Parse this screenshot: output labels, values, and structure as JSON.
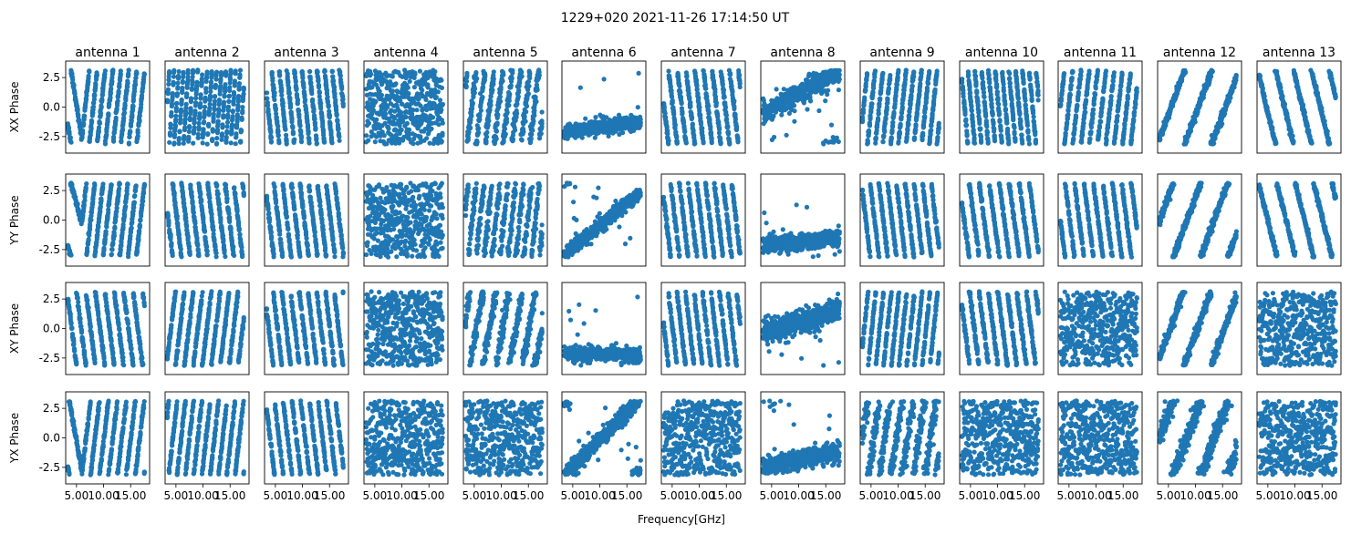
{
  "suptitle": "1229+020 2021-11-26 17:14:50 UT",
  "xlabel": "Frequency[GHz]",
  "row_labels": [
    "XX Phase",
    "YY Phase",
    "XY Phase",
    "YX Phase"
  ],
  "column_titles": [
    "antenna 1",
    "antenna 2",
    "antenna 3",
    "antenna 4",
    "antenna 5",
    "antenna 6",
    "antenna 7",
    "antenna 8",
    "antenna 9",
    "antenna 10",
    "antenna 11",
    "antenna 12",
    "antenna 13"
  ],
  "colors": {
    "marker": "#1f77b4",
    "frame": "#000000",
    "background": "#ffffff"
  },
  "chart_data": {
    "type": "scatter",
    "layout": "grid of small multiples, 4 rows (polarization) x 13 columns (antenna)",
    "xlim": [
      3.0,
      18.5
    ],
    "ylim": [
      -3.9,
      3.9
    ],
    "xticks": [
      5.0,
      10.0,
      15.0
    ],
    "xtick_labels": [
      "5.00",
      "10.00",
      "15.00"
    ],
    "yticks": [
      2.5,
      0.0,
      -2.5
    ],
    "ytick_labels": [
      "2.5",
      "0.0",
      "-2.5"
    ],
    "freq_range": [
      3.4,
      17.6
    ],
    "n_channels": 120,
    "n_time_samples": 4,
    "wrap_range": [
      -3.14159,
      3.14159
    ],
    "grid": false,
    "legend": "none",
    "panels": [
      [
        {
          "antenna": "antenna 1",
          "pol": "XX",
          "model": "vshape",
          "center": 6.0,
          "slopes": [
            -2.9,
            4.3
          ],
          "offset": -2.7,
          "noise": 0.15
        },
        {
          "antenna": "antenna 2",
          "pol": "XX",
          "model": "linear",
          "slope": 7.2,
          "offset": 0.3,
          "noise": 0.15
        },
        {
          "antenna": "antenna 3",
          "pol": "XX",
          "model": "linear",
          "slope": -4.5,
          "offset": 1.0,
          "noise": 0.15
        },
        {
          "antenna": "antenna 4",
          "pol": "XX",
          "model": "random",
          "noise": 0
        },
        {
          "antenna": "antenna 5",
          "pol": "XX",
          "model": "linear",
          "slope": 3.8,
          "offset": 2.0,
          "noise": 0.45
        },
        {
          "antenna": "antenna 6",
          "pol": "XX",
          "model": "flat",
          "offset": -2.1,
          "slope": 0.06,
          "noise": 0.3
        },
        {
          "antenna": "antenna 7",
          "pol": "XX",
          "model": "linear",
          "slope": -3.9,
          "offset": 0.5,
          "noise": 0.18
        },
        {
          "antenna": "antenna 8",
          "pol": "XX",
          "model": "flat",
          "offset": -0.5,
          "slope": 0.25,
          "noise": 0.45
        },
        {
          "antenna": "antenna 9",
          "pol": "XX",
          "model": "linear",
          "slope": 4.4,
          "offset": -1.0,
          "noise": 0.15
        },
        {
          "antenna": "antenna 10",
          "pol": "XX",
          "model": "linear",
          "slope": -5.0,
          "offset": 2.5,
          "noise": 0.15
        },
        {
          "antenna": "antenna 11",
          "pol": "XX",
          "model": "linear",
          "slope": 4.1,
          "offset": 0.0,
          "noise": 0.15
        },
        {
          "antenna": "antenna 12",
          "pol": "XX",
          "model": "linear",
          "slope": 1.25,
          "offset": -2.6,
          "noise": 0.2
        },
        {
          "antenna": "antenna 13",
          "pol": "XX",
          "model": "linear",
          "slope": -1.9,
          "offset": 2.6,
          "noise": 0.15
        }
      ],
      [
        {
          "antenna": "antenna 1",
          "pol": "YY",
          "model": "vshape",
          "center": 6.0,
          "slopes": [
            -1.7,
            4.1
          ],
          "offset": -0.3,
          "noise": 0.15
        },
        {
          "antenna": "antenna 2",
          "pol": "YY",
          "model": "linear",
          "slope": -3.9,
          "offset": 0.8,
          "noise": 0.15
        },
        {
          "antenna": "antenna 3",
          "pol": "YY",
          "model": "linear",
          "slope": -3.9,
          "offset": 2.0,
          "noise": 0.15
        },
        {
          "antenna": "antenna 4",
          "pol": "YY",
          "model": "random",
          "noise": 0
        },
        {
          "antenna": "antenna 5",
          "pol": "YY",
          "model": "linear",
          "slope": 4.3,
          "offset": 1.0,
          "noise": 0.45
        },
        {
          "antenna": "antenna 6",
          "pol": "YY",
          "model": "flat",
          "offset": -3.0,
          "slope": 0.38,
          "noise": 0.3
        },
        {
          "antenna": "antenna 7",
          "pol": "YY",
          "model": "linear",
          "slope": -3.9,
          "offset": 2.0,
          "noise": 0.18
        },
        {
          "antenna": "antenna 8",
          "pol": "YY",
          "model": "flat",
          "offset": -2.2,
          "slope": 0.05,
          "noise": 0.35
        },
        {
          "antenna": "antenna 9",
          "pol": "YY",
          "model": "linear",
          "slope": -3.9,
          "offset": 2.5,
          "noise": 0.15
        },
        {
          "antenna": "antenna 10",
          "pol": "YY",
          "model": "linear",
          "slope": -3.4,
          "offset": 1.5,
          "noise": 0.15
        },
        {
          "antenna": "antenna 11",
          "pol": "YY",
          "model": "linear",
          "slope": -3.6,
          "offset": 0.0,
          "noise": 0.15
        },
        {
          "antenna": "antenna 12",
          "pol": "YY",
          "model": "linear",
          "slope": 1.25,
          "offset": 0.0,
          "noise": 0.2
        },
        {
          "antenna": "antenna 13",
          "pol": "YY",
          "model": "linear",
          "slope": -1.85,
          "offset": 2.9,
          "noise": 0.15
        }
      ],
      [
        {
          "antenna": "antenna 1",
          "pol": "XY",
          "model": "linear",
          "slope": -3.6,
          "offset": 2.6,
          "noise": 0.15
        },
        {
          "antenna": "antenna 2",
          "pol": "XY",
          "model": "linear",
          "slope": 3.8,
          "offset": -2.6,
          "noise": 0.15
        },
        {
          "antenna": "antenna 3",
          "pol": "XY",
          "model": "linear",
          "slope": -3.9,
          "offset": 1.5,
          "noise": 0.15
        },
        {
          "antenna": "antenna 4",
          "pol": "XY",
          "model": "random",
          "noise": 0
        },
        {
          "antenna": "antenna 5",
          "pol": "XY",
          "model": "linear",
          "slope": 2.6,
          "offset": 1.0,
          "noise": 0.5
        },
        {
          "antenna": "antenna 6",
          "pol": "XY",
          "model": "flat",
          "offset": -2.2,
          "slope": 0.0,
          "noise": 0.3
        },
        {
          "antenna": "antenna 7",
          "pol": "XY",
          "model": "linear",
          "slope": -4.0,
          "offset": 0.5,
          "noise": 0.18
        },
        {
          "antenna": "antenna 8",
          "pol": "XY",
          "model": "flat",
          "offset": -0.5,
          "slope": 0.15,
          "noise": 0.5
        },
        {
          "antenna": "antenna 9",
          "pol": "XY",
          "model": "linear",
          "slope": 4.4,
          "offset": -1.5,
          "noise": 0.15
        },
        {
          "antenna": "antenna 10",
          "pol": "XY",
          "model": "linear",
          "slope": -3.6,
          "offset": 2.0,
          "noise": 0.2
        },
        {
          "antenna": "antenna 11",
          "pol": "XY",
          "model": "random",
          "noise": 0
        },
        {
          "antenna": "antenna 12",
          "pol": "XY",
          "model": "linear",
          "slope": 1.25,
          "offset": -2.4,
          "noise": 0.25
        },
        {
          "antenna": "antenna 13",
          "pol": "XY",
          "model": "random",
          "noise": 0
        }
      ],
      [
        {
          "antenna": "antenna 1",
          "pol": "YX",
          "model": "vshape",
          "center": 6.0,
          "slopes": [
            -2.6,
            3.8
          ],
          "offset": -2.9,
          "noise": 0.15
        },
        {
          "antenna": "antenna 2",
          "pol": "YX",
          "model": "linear",
          "slope": 4.1,
          "offset": 2.0,
          "noise": 0.15
        },
        {
          "antenna": "antenna 3",
          "pol": "YX",
          "model": "linear",
          "slope": -3.9,
          "offset": 2.5,
          "noise": 0.15
        },
        {
          "antenna": "antenna 4",
          "pol": "YX",
          "model": "random",
          "noise": 0
        },
        {
          "antenna": "antenna 5",
          "pol": "YX",
          "model": "random",
          "noise": 0
        },
        {
          "antenna": "antenna 6",
          "pol": "YX",
          "model": "flat",
          "offset": -3.3,
          "slope": 0.48,
          "noise": 0.35
        },
        {
          "antenna": "antenna 7",
          "pol": "YX",
          "model": "random",
          "noise": 0
        },
        {
          "antenna": "antenna 8",
          "pol": "YX",
          "model": "flat",
          "offset": -2.5,
          "slope": 0.1,
          "noise": 0.4
        },
        {
          "antenna": "antenna 9",
          "pol": "YX",
          "model": "linear",
          "slope": 3.0,
          "offset": 0.0,
          "noise": 0.6
        },
        {
          "antenna": "antenna 10",
          "pol": "YX",
          "model": "random",
          "noise": 0
        },
        {
          "antenna": "antenna 11",
          "pol": "YX",
          "model": "random",
          "noise": 0
        },
        {
          "antenna": "antenna 12",
          "pol": "YX",
          "model": "linear",
          "slope": 1.25,
          "offset": 0.0,
          "noise": 0.5
        },
        {
          "antenna": "antenna 13",
          "pol": "YX",
          "model": "random",
          "noise": 0
        }
      ]
    ]
  }
}
